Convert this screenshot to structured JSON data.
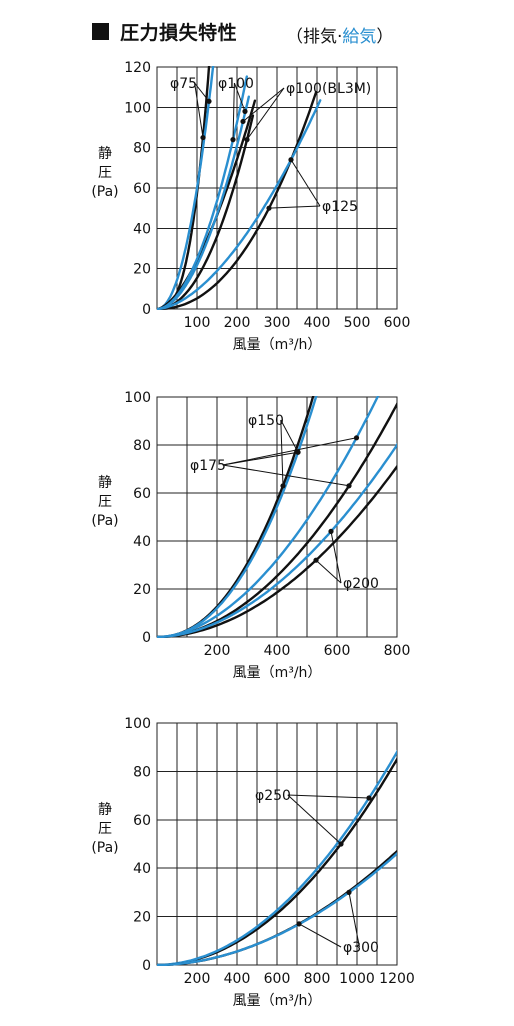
{
  "title": "圧力損失特性",
  "subtitle": {
    "open": "（",
    "exhaust": "排気",
    "separator": "·",
    "supply": "給気",
    "close": "）"
  },
  "colors": {
    "exhaust": "#111111",
    "supply": "#2a8fd0"
  },
  "chart_data": [
    {
      "type": "line",
      "xlabel": "風量（m³/h）",
      "ylabel": [
        "静",
        "圧",
        "(Pa)"
      ],
      "xlim": [
        0,
        600
      ],
      "ylim": [
        0,
        120
      ],
      "xticks": [
        100,
        200,
        300,
        400,
        500,
        600
      ],
      "yticks": [
        0,
        20,
        40,
        60,
        80,
        100,
        120
      ],
      "grid": true,
      "series": [
        {
          "name": "φ75",
          "kind": "exhaust",
          "x": [
            0,
            115,
            130
          ],
          "y": [
            0,
            85,
            120
          ]
        },
        {
          "name": "φ75",
          "kind": "supply",
          "x": [
            0,
            130,
            140
          ],
          "y": [
            0,
            103,
            120
          ]
        },
        {
          "name": "φ100",
          "kind": "exhaust",
          "x": [
            0,
            225,
            240
          ],
          "y": [
            0,
            90,
            100
          ]
        },
        {
          "name": "φ100",
          "kind": "supply",
          "x": [
            0,
            190,
            220
          ],
          "y": [
            0,
            84,
            98
          ]
        },
        {
          "name": "φ100(BL3M)",
          "kind": "exhaust",
          "x": [
            0,
            225,
            235
          ],
          "y": [
            0,
            84,
            92
          ]
        },
        {
          "name": "φ100(BL3M)",
          "kind": "supply",
          "x": [
            0,
            215,
            225
          ],
          "y": [
            0,
            93,
            98
          ]
        },
        {
          "name": "φ125",
          "kind": "exhaust",
          "x": [
            0,
            280,
            390
          ],
          "y": [
            0,
            50,
            103
          ]
        },
        {
          "name": "φ125",
          "kind": "supply",
          "x": [
            0,
            335,
            400
          ],
          "y": [
            0,
            74,
            100
          ]
        }
      ],
      "annotations": [
        {
          "text": "φ75",
          "points": [
            [
              115,
              85
            ],
            [
              130,
              103
            ]
          ]
        },
        {
          "text": "φ100",
          "points": [
            [
              190,
              84
            ],
            [
              220,
              98
            ]
          ]
        },
        {
          "text": "φ100(BL3M)",
          "points": [
            [
              215,
              93
            ],
            [
              225,
              84
            ]
          ]
        },
        {
          "text": "φ125",
          "points": [
            [
              280,
              50
            ],
            [
              335,
              74
            ]
          ]
        }
      ]
    },
    {
      "type": "line",
      "xlabel": "風量（m³/h）",
      "ylabel": [
        "静",
        "圧",
        "(Pa)"
      ],
      "xlim": [
        0,
        800
      ],
      "ylim": [
        0,
        100
      ],
      "xticks": [
        200,
        400,
        600,
        800
      ],
      "yticks": [
        0,
        20,
        40,
        60,
        80,
        100
      ],
      "grid": true,
      "series": [
        {
          "name": "φ150",
          "kind": "exhaust",
          "x": [
            0,
            420,
            520
          ],
          "y": [
            0,
            63,
            100
          ]
        },
        {
          "name": "φ150",
          "kind": "supply",
          "x": [
            0,
            470,
            530
          ],
          "y": [
            0,
            77,
            100
          ]
        },
        {
          "name": "φ175",
          "kind": "exhaust",
          "x": [
            0,
            640,
            800
          ],
          "y": [
            0,
            63,
            97
          ]
        },
        {
          "name": "φ175",
          "kind": "supply",
          "x": [
            0,
            665,
            735
          ],
          "y": [
            0,
            83,
            100
          ]
        },
        {
          "name": "φ200",
          "kind": "exhaust",
          "x": [
            0,
            530,
            800
          ],
          "y": [
            0,
            32,
            71
          ]
        },
        {
          "name": "φ200",
          "kind": "supply",
          "x": [
            0,
            580,
            800
          ],
          "y": [
            0,
            44,
            80
          ]
        }
      ],
      "annotations": [
        {
          "text": "φ150",
          "points": [
            [
              420,
              63
            ],
            [
              470,
              77
            ]
          ]
        },
        {
          "text": "φ175",
          "points": [
            [
              470,
              77
            ],
            [
              665,
              83
            ],
            [
              640,
              63
            ]
          ]
        },
        {
          "text": "φ200",
          "points": [
            [
              530,
              32
            ],
            [
              580,
              44
            ]
          ]
        }
      ]
    },
    {
      "type": "line",
      "xlabel": "風量（m³/h）",
      "ylabel": [
        "静",
        "圧",
        "(Pa)"
      ],
      "xlim": [
        0,
        1200
      ],
      "ylim": [
        0,
        100
      ],
      "xticks": [
        200,
        400,
        600,
        800,
        1000,
        1200
      ],
      "yticks": [
        0,
        20,
        40,
        60,
        80,
        100
      ],
      "grid": true,
      "series": [
        {
          "name": "φ250",
          "kind": "exhaust",
          "x": [
            0,
            920,
            1200
          ],
          "y": [
            0,
            50,
            85
          ]
        },
        {
          "name": "φ250",
          "kind": "supply",
          "x": [
            0,
            1060,
            1200
          ],
          "y": [
            0,
            69,
            88
          ]
        },
        {
          "name": "φ300",
          "kind": "exhaust",
          "x": [
            0,
            710,
            1200
          ],
          "y": [
            0,
            17,
            47
          ]
        },
        {
          "name": "φ300",
          "kind": "supply",
          "x": [
            0,
            960,
            1200
          ],
          "y": [
            0,
            30,
            46
          ]
        }
      ],
      "annotations": [
        {
          "text": "φ250",
          "points": [
            [
              920,
              50
            ],
            [
              1060,
              69
            ]
          ]
        },
        {
          "text": "φ300",
          "points": [
            [
              710,
              17
            ],
            [
              960,
              30
            ]
          ]
        }
      ]
    }
  ]
}
